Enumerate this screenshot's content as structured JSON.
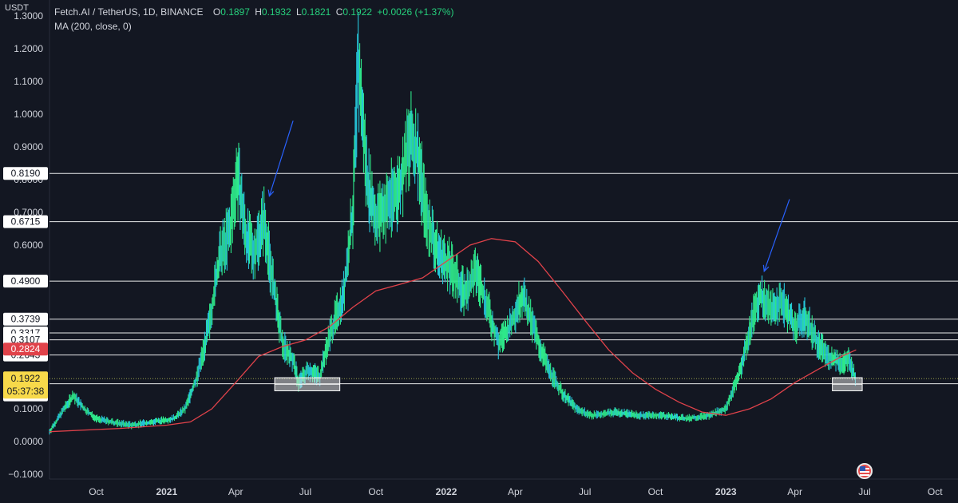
{
  "header": {
    "unit": "USDT",
    "symbol": "Fetch.AI / TetherUS, 1D, BINANCE",
    "o_label": "O",
    "o_value": "0.1897",
    "h_label": "H",
    "h_value": "0.1932",
    "l_label": "L",
    "l_value": "0.1821",
    "c_label": "C",
    "c_value": "0.1922",
    "change": "+0.0026 (+1.37%)",
    "indicator": "MA (200, close, 0)"
  },
  "colors": {
    "background": "#131722",
    "candle_main": "#2ee88a",
    "candle_alt": "#26c6da",
    "ma": "#e0424a",
    "level_line": "#ffffff",
    "price_line": "#9aa04a",
    "arrow": "#2962ff",
    "current_price_tag": "#f7d94a",
    "ma_tag": "#e0424a"
  },
  "icons": {
    "flag": "us-flag-icon"
  },
  "chart_data": {
    "type": "line",
    "ylim": [
      -0.1,
      1.3
    ],
    "y_ticks": [
      "−0.1000",
      "0.0000",
      "0.1000",
      "0.6000",
      "0.7000",
      "0.8000",
      "0.9000",
      "1.0000",
      "1.1000",
      "1.2000",
      "1.3000"
    ],
    "x_range": [
      "2020-08-01",
      "2023-10-31"
    ],
    "x_ticks": [
      {
        "label": "Oct",
        "date": "2020-10-01"
      },
      {
        "label": "2021",
        "date": "2021-01-01"
      },
      {
        "label": "Apr",
        "date": "2021-04-01"
      },
      {
        "label": "Jul",
        "date": "2021-07-01"
      },
      {
        "label": "Oct",
        "date": "2021-10-01"
      },
      {
        "label": "2022",
        "date": "2022-01-01"
      },
      {
        "label": "Apr",
        "date": "2022-04-01"
      },
      {
        "label": "Jul",
        "date": "2022-07-01"
      },
      {
        "label": "Oct",
        "date": "2022-10-01"
      },
      {
        "label": "2023",
        "date": "2023-01-01"
      },
      {
        "label": "Apr",
        "date": "2023-04-01"
      },
      {
        "label": "Jul",
        "date": "2023-07-01"
      },
      {
        "label": "Oct",
        "date": "2023-10-01"
      }
    ],
    "series": [
      {
        "values_kind": "close",
        "points": [
          [
            "2020-08-01",
            0.03
          ],
          [
            "2020-08-20",
            0.1
          ],
          [
            "2020-09-01",
            0.14
          ],
          [
            "2020-09-15",
            0.1
          ],
          [
            "2020-10-01",
            0.07
          ],
          [
            "2020-10-20",
            0.06
          ],
          [
            "2020-11-15",
            0.05
          ],
          [
            "2020-12-15",
            0.06
          ],
          [
            "2021-01-10",
            0.07
          ],
          [
            "2021-01-25",
            0.1
          ],
          [
            "2021-02-10",
            0.2
          ],
          [
            "2021-02-25",
            0.35
          ],
          [
            "2021-03-10",
            0.55
          ],
          [
            "2021-03-25",
            0.65
          ],
          [
            "2021-04-03",
            0.82
          ],
          [
            "2021-04-15",
            0.62
          ],
          [
            "2021-04-25",
            0.58
          ],
          [
            "2021-05-08",
            0.68
          ],
          [
            "2021-05-20",
            0.48
          ],
          [
            "2021-06-01",
            0.3
          ],
          [
            "2021-06-15",
            0.25
          ],
          [
            "2021-06-22",
            0.18
          ],
          [
            "2021-07-05",
            0.22
          ],
          [
            "2021-07-20",
            0.2
          ],
          [
            "2021-08-01",
            0.32
          ],
          [
            "2021-08-20",
            0.45
          ],
          [
            "2021-09-01",
            0.7
          ],
          [
            "2021-09-08",
            1.15
          ],
          [
            "2021-09-20",
            0.8
          ],
          [
            "2021-10-01",
            0.68
          ],
          [
            "2021-10-15",
            0.72
          ],
          [
            "2021-11-01",
            0.78
          ],
          [
            "2021-11-15",
            0.92
          ],
          [
            "2021-11-25",
            0.88
          ],
          [
            "2021-12-05",
            0.7
          ],
          [
            "2021-12-20",
            0.58
          ],
          [
            "2022-01-10",
            0.52
          ],
          [
            "2022-01-25",
            0.45
          ],
          [
            "2022-02-10",
            0.52
          ],
          [
            "2022-02-25",
            0.4
          ],
          [
            "2022-03-10",
            0.3
          ],
          [
            "2022-03-25",
            0.35
          ],
          [
            "2022-04-10",
            0.45
          ],
          [
            "2022-04-20",
            0.38
          ],
          [
            "2022-05-05",
            0.28
          ],
          [
            "2022-05-15",
            0.22
          ],
          [
            "2022-06-01",
            0.15
          ],
          [
            "2022-06-20",
            0.1
          ],
          [
            "2022-07-10",
            0.08
          ],
          [
            "2022-08-10",
            0.09
          ],
          [
            "2022-09-10",
            0.08
          ],
          [
            "2022-10-10",
            0.08
          ],
          [
            "2022-11-10",
            0.07
          ],
          [
            "2022-12-10",
            0.08
          ],
          [
            "2023-01-01",
            0.1
          ],
          [
            "2023-01-20",
            0.22
          ],
          [
            "2023-02-05",
            0.38
          ],
          [
            "2023-02-15",
            0.45
          ],
          [
            "2023-03-01",
            0.4
          ],
          [
            "2023-03-15",
            0.43
          ],
          [
            "2023-04-01",
            0.35
          ],
          [
            "2023-04-15",
            0.38
          ],
          [
            "2023-05-01",
            0.3
          ],
          [
            "2023-05-15",
            0.26
          ],
          [
            "2023-06-01",
            0.24
          ],
          [
            "2023-06-10",
            0.25
          ],
          [
            "2023-06-20",
            0.19
          ]
        ]
      },
      {
        "name": "MA (200, close, 0)",
        "points": [
          [
            "2020-08-01",
            0.03
          ],
          [
            "2020-11-01",
            0.04
          ],
          [
            "2021-01-01",
            0.05
          ],
          [
            "2021-02-01",
            0.06
          ],
          [
            "2021-03-01",
            0.1
          ],
          [
            "2021-04-01",
            0.18
          ],
          [
            "2021-05-01",
            0.26
          ],
          [
            "2021-06-01",
            0.29
          ],
          [
            "2021-07-01",
            0.31
          ],
          [
            "2021-08-01",
            0.35
          ],
          [
            "2021-09-01",
            0.41
          ],
          [
            "2021-10-01",
            0.46
          ],
          [
            "2021-11-01",
            0.48
          ],
          [
            "2021-12-01",
            0.5
          ],
          [
            "2022-01-01",
            0.55
          ],
          [
            "2022-02-01",
            0.6
          ],
          [
            "2022-03-01",
            0.62
          ],
          [
            "2022-04-01",
            0.61
          ],
          [
            "2022-05-01",
            0.55
          ],
          [
            "2022-06-01",
            0.46
          ],
          [
            "2022-07-01",
            0.37
          ],
          [
            "2022-08-01",
            0.28
          ],
          [
            "2022-09-01",
            0.21
          ],
          [
            "2022-10-01",
            0.16
          ],
          [
            "2022-11-01",
            0.12
          ],
          [
            "2022-12-01",
            0.09
          ],
          [
            "2023-01-01",
            0.08
          ],
          [
            "2023-02-01",
            0.1
          ],
          [
            "2023-03-01",
            0.13
          ],
          [
            "2023-04-01",
            0.18
          ],
          [
            "2023-05-01",
            0.22
          ],
          [
            "2023-06-01",
            0.26
          ],
          [
            "2023-06-20",
            0.28
          ]
        ]
      }
    ],
    "horizontal_levels": [
      {
        "value": 0.819,
        "label": "0.8190",
        "tag_color": "#ffffff",
        "text_color": "#131722"
      },
      {
        "value": 0.6715,
        "label": "0.6715",
        "tag_color": "#ffffff",
        "text_color": "#131722"
      },
      {
        "value": 0.49,
        "label": "0.4900",
        "tag_color": "#ffffff",
        "text_color": "#131722"
      },
      {
        "value": 0.3739,
        "label": "0.3739",
        "tag_color": "#ffffff",
        "text_color": "#131722"
      },
      {
        "value": 0.3317,
        "label": "0.3317",
        "tag_color": "#ffffff",
        "text_color": "#131722"
      },
      {
        "value": 0.3107,
        "label": "0.3107",
        "tag_color": "#ffffff",
        "text_color": "#131722"
      },
      {
        "value": 0.2643,
        "label": "0.2643",
        "tag_color": "#ffffff",
        "text_color": "#131722"
      },
      {
        "value": 0.1766,
        "label": "0.1766",
        "tag_color": "#ffffff",
        "text_color": "#131722"
      }
    ],
    "ma_tag": {
      "value": 0.2824,
      "label": "0.2824"
    },
    "current_price": {
      "value": 0.1922,
      "label": "0.1922",
      "countdown": "05:37:38"
    },
    "support_zones": [
      {
        "x0": "2021-05-22",
        "x1": "2021-08-15",
        "y0": 0.155,
        "y1": 0.195
      },
      {
        "x0": "2023-05-20",
        "x1": "2023-06-28",
        "y0": 0.155,
        "y1": 0.195
      }
    ],
    "arrows": [
      {
        "from": [
          "2021-06-15",
          0.98
        ],
        "to": [
          "2021-05-15",
          0.75
        ]
      },
      {
        "from": [
          "2023-03-25",
          0.74
        ],
        "to": [
          "2023-02-20",
          0.52
        ]
      }
    ]
  }
}
